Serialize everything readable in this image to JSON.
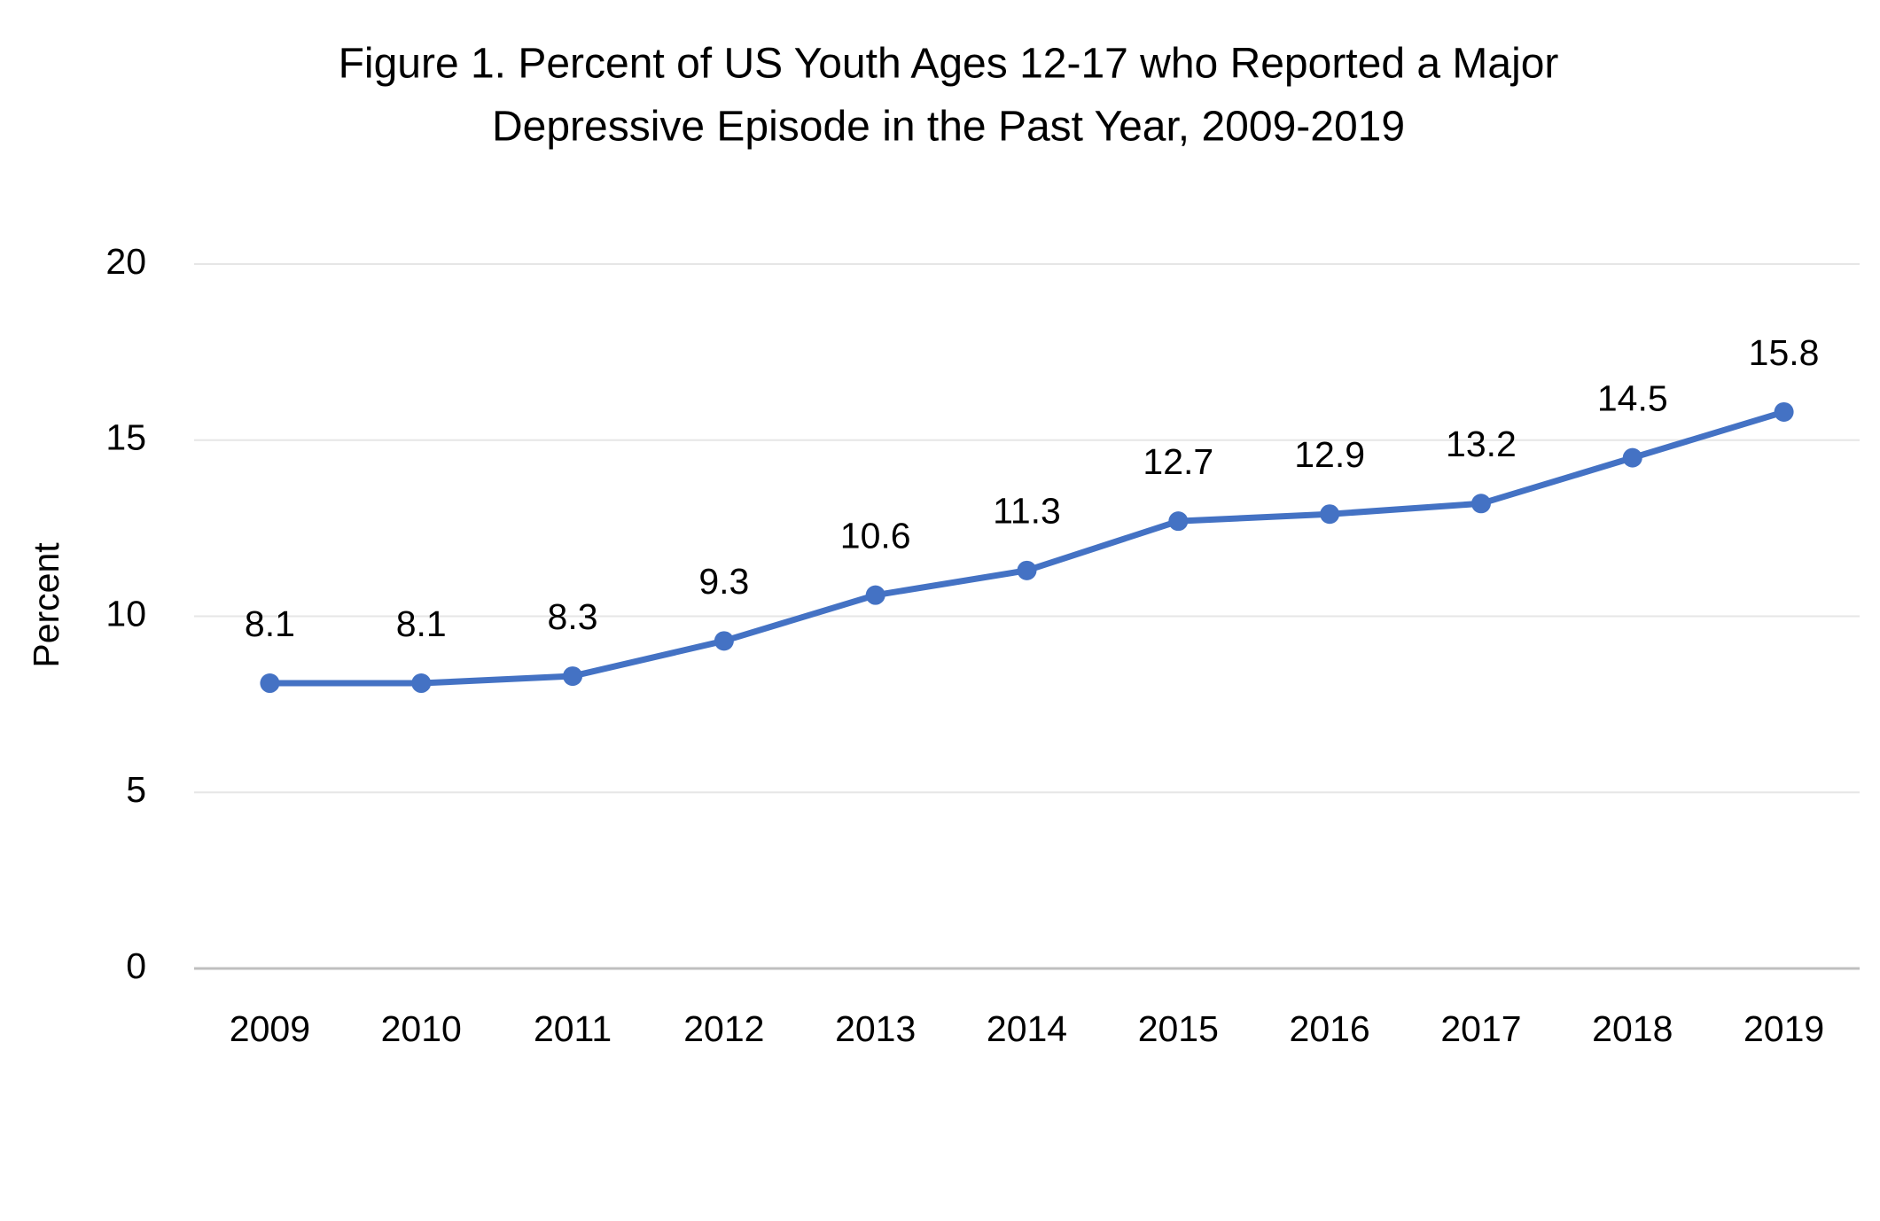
{
  "chart_data": {
    "type": "line",
    "title": [
      "Figure 1. Percent of US Youth Ages 12-17 who Reported a Major",
      "Depressive Episode in the Past Year, 2009-2019"
    ],
    "ylabel": "Percent",
    "categories": [
      "2009",
      "2010",
      "2011",
      "2012",
      "2013",
      "2014",
      "2015",
      "2016",
      "2017",
      "2018",
      "2019"
    ],
    "values": [
      8.1,
      8.1,
      8.3,
      9.3,
      10.6,
      11.3,
      12.7,
      12.9,
      13.2,
      14.5,
      15.8
    ],
    "color": "#4472c4",
    "ylim": [
      0,
      20
    ],
    "yticks": [
      0,
      5,
      10,
      15,
      20
    ],
    "grid": true,
    "data_labels": true
  }
}
